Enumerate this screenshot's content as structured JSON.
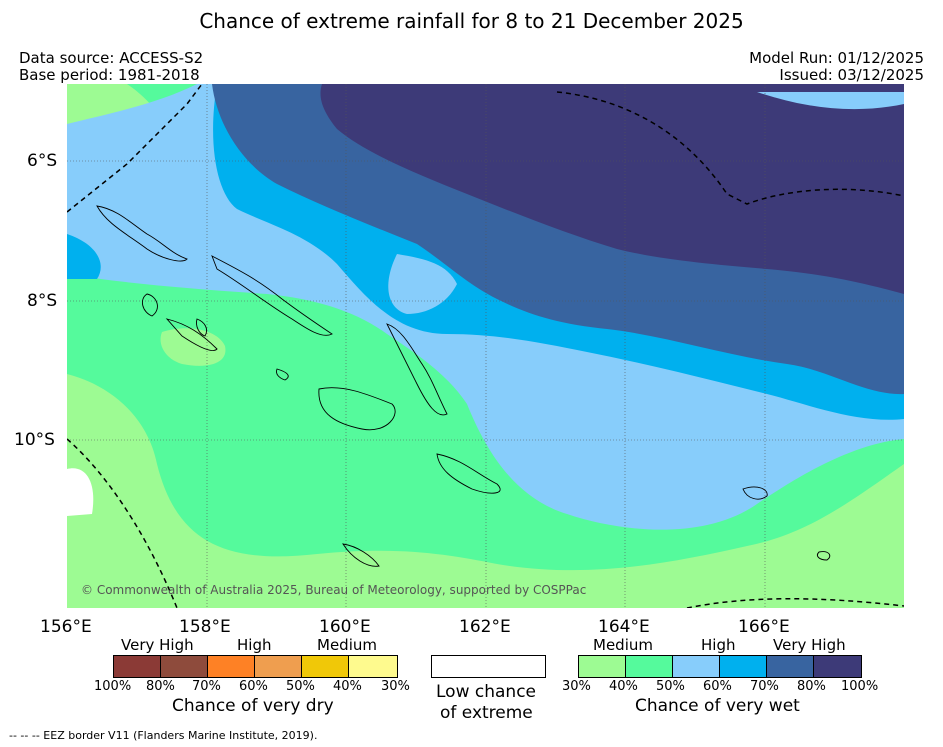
{
  "title": "Chance of extreme rainfall for 8 to 21 December 2025",
  "source": {
    "data_source": "Data source: ACCESS-S2",
    "base_period": "Base period: 1981-2018",
    "model_run": "Model Run: 01/12/2025",
    "issued": "Issued: 03/12/2025"
  },
  "axes": {
    "lat_labels": [
      "6°S",
      "8°S",
      "10°S"
    ],
    "lon_labels": [
      "156°E",
      "158°E",
      "160°E",
      "162°E",
      "164°E",
      "166°E"
    ]
  },
  "credit": "© Commonwealth of Australia 2025, Bureau of Meteorology, supported by COSPPac",
  "legend": {
    "dry": {
      "categories": [
        "Very High",
        "High",
        "Medium"
      ],
      "ticks": [
        "100%",
        "80%",
        "70%",
        "60%",
        "50%",
        "40%",
        "30%"
      ],
      "colors": [
        "#8b3a36",
        "#8e4b3c",
        "#fe8125",
        "#ef9e4f",
        "#f0c808",
        "#fefa8e"
      ],
      "title": "Chance of very dry"
    },
    "low": {
      "line1": "Low chance",
      "line2": "of extreme"
    },
    "wet": {
      "categories": [
        "Medium",
        "High",
        "Very High"
      ],
      "ticks": [
        "30%",
        "40%",
        "50%",
        "60%",
        "70%",
        "80%",
        "100%"
      ],
      "colors": [
        "#9dfb93",
        "#55fa9c",
        "#87cdfb",
        "#00b0ee",
        "#3864a0",
        "#3d3a78"
      ],
      "title": "Chance of very wet"
    }
  },
  "footer": "-- -- -- EEZ border V11 (Flanders Marine Institute, 2019)."
}
